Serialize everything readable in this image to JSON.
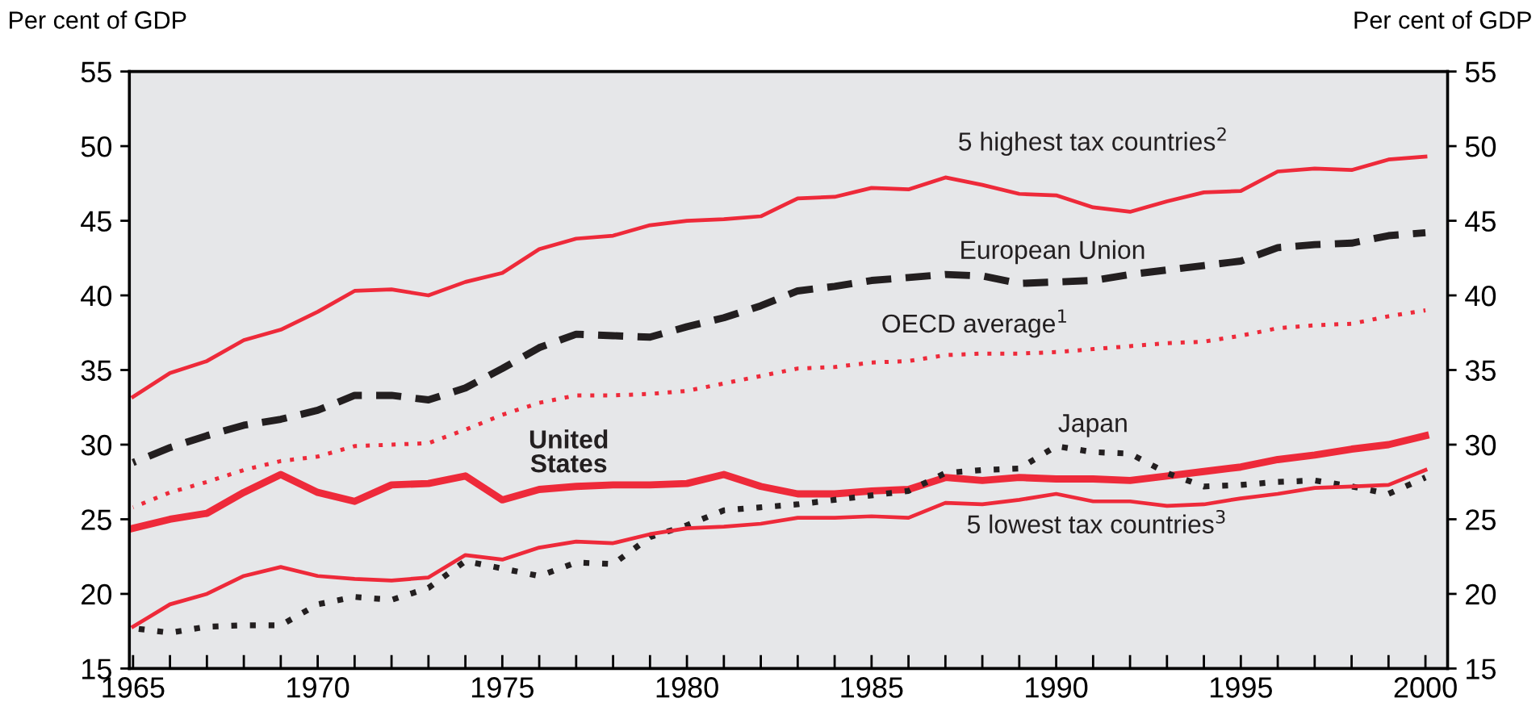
{
  "chart_data": {
    "type": "line",
    "ylabel": "Per cent of GDP",
    "y2label": "Per cent of GDP",
    "x": [
      1965,
      1966,
      1967,
      1968,
      1969,
      1970,
      1971,
      1972,
      1973,
      1974,
      1975,
      1976,
      1977,
      1978,
      1979,
      1980,
      1981,
      1982,
      1983,
      1984,
      1985,
      1986,
      1987,
      1988,
      1989,
      1990,
      1991,
      1992,
      1993,
      1994,
      1995,
      1996,
      1997,
      1998,
      1999,
      2000
    ],
    "xlim": [
      1964.9,
      2000.6
    ],
    "xticks": [
      1965,
      {
        "value": 1966,
        "label": null
      },
      {
        "value": 1967,
        "label": null
      },
      {
        "value": 1968,
        "label": null
      },
      {
        "value": 1969,
        "label": null
      },
      1970,
      {
        "value": 1971,
        "label": null
      },
      {
        "value": 1972,
        "label": null
      },
      {
        "value": 1973,
        "label": null
      },
      {
        "value": 1974,
        "label": null
      },
      1975,
      {
        "value": 1976,
        "label": null
      },
      {
        "value": 1977,
        "label": null
      },
      {
        "value": 1978,
        "label": null
      },
      {
        "value": 1979,
        "label": null
      },
      1980,
      {
        "value": 1981,
        "label": null
      },
      {
        "value": 1982,
        "label": null
      },
      {
        "value": 1983,
        "label": null
      },
      {
        "value": 1984,
        "label": null
      },
      1985,
      {
        "value": 1986,
        "label": null
      },
      {
        "value": 1987,
        "label": null
      },
      {
        "value": 1988,
        "label": null
      },
      {
        "value": 1989,
        "label": null
      },
      1990,
      {
        "value": 1991,
        "label": null
      },
      {
        "value": 1992,
        "label": null
      },
      {
        "value": 1993,
        "label": null
      },
      {
        "value": 1994,
        "label": null
      },
      1995,
      {
        "value": 1996,
        "label": null
      },
      {
        "value": 1997,
        "label": null
      },
      {
        "value": 1998,
        "label": null
      },
      {
        "value": 1999,
        "label": null
      },
      2000
    ],
    "ylim": [
      15,
      55
    ],
    "yticks": [
      15,
      20,
      25,
      30,
      35,
      40,
      45,
      50,
      55
    ],
    "y2lim": [
      15,
      55
    ],
    "y2ticks": [
      15,
      20,
      25,
      30,
      35,
      40,
      45,
      50,
      55
    ],
    "grid": false,
    "legend": false,
    "marker": "none",
    "series": [
      {
        "name": "5 highest tax countries$^{2}$",
        "color": "#ee2a3a",
        "line_style": "solid",
        "values": [
          33.2,
          34.8,
          35.6,
          37.0,
          37.7,
          38.9,
          40.3,
          40.4,
          40.0,
          40.9,
          41.5,
          43.1,
          43.8,
          44.0,
          44.7,
          45.0,
          45.1,
          45.3,
          46.5,
          46.6,
          47.2,
          47.1,
          47.9,
          47.4,
          46.8,
          46.7,
          45.9,
          45.6,
          46.3,
          46.9,
          47.0,
          48.3,
          48.5,
          48.4,
          49.1,
          49.3
        ]
      },
      {
        "name": "European Union",
        "color": "#231f20",
        "line_style": "dashed",
        "values": [
          28.8,
          29.8,
          30.6,
          31.3,
          31.7,
          32.3,
          33.3,
          33.3,
          33.0,
          33.8,
          35.1,
          36.5,
          37.4,
          37.3,
          37.2,
          37.9,
          38.5,
          39.3,
          40.3,
          40.6,
          41.0,
          41.2,
          41.4,
          41.3,
          40.8,
          40.9,
          41.0,
          41.4,
          41.7,
          42.0,
          42.3,
          43.2,
          43.4,
          43.5,
          44.0,
          44.2
        ]
      },
      {
        "name": "OECD average$^{1}$",
        "color": "#ee2a3a",
        "line_style": "dotted",
        "values": [
          25.8,
          26.8,
          27.5,
          28.3,
          28.9,
          29.2,
          29.9,
          30.0,
          30.1,
          31.0,
          32.0,
          32.8,
          33.3,
          33.3,
          33.4,
          33.6,
          34.1,
          34.6,
          35.1,
          35.2,
          35.5,
          35.6,
          36.0,
          36.1,
          36.1,
          36.2,
          36.4,
          36.6,
          36.8,
          36.9,
          37.3,
          37.8,
          38.0,
          38.1,
          38.6,
          39.0
        ]
      },
      {
        "name": "United\nStates",
        "color": "#ee2a3a",
        "line_style": "solid",
        "values": [
          24.4,
          25.0,
          25.4,
          26.8,
          28.0,
          26.8,
          26.2,
          27.3,
          27.4,
          27.9,
          26.3,
          27.0,
          27.2,
          27.3,
          27.3,
          27.4,
          28.0,
          27.2,
          26.7,
          26.7,
          26.9,
          27.0,
          27.8,
          27.6,
          27.8,
          27.7,
          27.7,
          27.6,
          27.9,
          28.2,
          28.5,
          29.0,
          29.3,
          29.7,
          30.0,
          30.6
        ]
      },
      {
        "name": "Japan",
        "color": "#231f20",
        "line_style": "dotted",
        "values": [
          17.7,
          17.4,
          17.8,
          17.9,
          17.9,
          19.3,
          19.8,
          19.6,
          20.4,
          22.2,
          21.7,
          21.2,
          22.1,
          22.0,
          23.8,
          24.6,
          25.6,
          25.8,
          26.0,
          26.3,
          26.6,
          26.9,
          28.1,
          28.3,
          28.4,
          29.9,
          29.5,
          29.4,
          28.1,
          27.2,
          27.3,
          27.5,
          27.6,
          27.2,
          26.7,
          27.8
        ]
      },
      {
        "name": "5 lowest tax countries$^{3}$",
        "color": "#ee2a3a",
        "line_style": "solid",
        "values": [
          17.8,
          19.3,
          20.0,
          21.2,
          21.8,
          21.2,
          21.0,
          20.9,
          21.1,
          22.6,
          22.3,
          23.1,
          23.5,
          23.4,
          24.0,
          24.4,
          24.5,
          24.7,
          25.1,
          25.1,
          25.2,
          25.1,
          26.1,
          26.0,
          26.3,
          26.7,
          26.2,
          26.2,
          25.9,
          26.0,
          26.4,
          26.7,
          27.1,
          27.2,
          27.3,
          28.3
        ]
      }
    ]
  }
}
